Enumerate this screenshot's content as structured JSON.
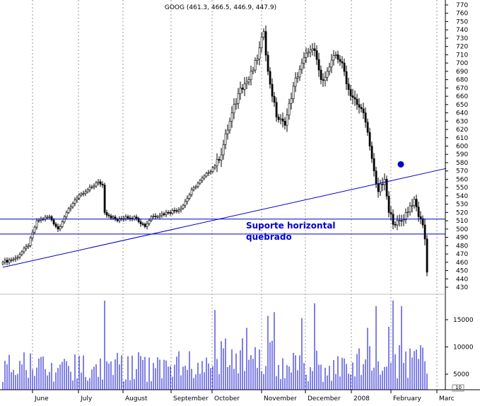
{
  "chart_data": {
    "type": "candlestick",
    "title": "GOOG (461.3, 466.5, 446.9, 447.9)",
    "colors": {
      "price": "#000000",
      "volume": "#0000cc",
      "annotation": "#0000cc",
      "grid": "#999999"
    },
    "price_axis": {
      "ylim": [
        430,
        775
      ],
      "ticks": [
        430,
        440,
        450,
        460,
        470,
        480,
        490,
        500,
        510,
        520,
        530,
        540,
        550,
        560,
        570,
        580,
        590,
        600,
        610,
        620,
        630,
        640,
        650,
        660,
        670,
        680,
        690,
        700,
        710,
        720,
        730,
        740,
        750,
        760,
        770
      ]
    },
    "volume_axis": {
      "ylim": [
        1500,
        19500
      ],
      "ticks": [
        5000,
        10000,
        15000
      ]
    },
    "month_labels": [
      "June",
      "July",
      "August",
      "September",
      "October",
      "November",
      "December",
      "2008",
      "February",
      "Marc"
    ],
    "corner_label": "10",
    "annotations": {
      "horizontal_support_text_line1": "Suporte horizontal",
      "horizontal_support_text_line2": "quebrado",
      "support_levels": [
        512,
        494
      ],
      "trendline_start": {
        "bar": 0,
        "price": 454
      },
      "trendline_end": {
        "bar": 199,
        "price": 573
      },
      "marker_bar": 184,
      "marker_price": 578
    },
    "anchors": [
      {
        "bar": 0,
        "close": 460
      },
      {
        "bar": 6,
        "close": 465
      },
      {
        "bar": 12,
        "close": 480
      },
      {
        "bar": 16,
        "close": 510
      },
      {
        "bar": 22,
        "close": 515
      },
      {
        "bar": 26,
        "close": 500
      },
      {
        "bar": 30,
        "close": 520
      },
      {
        "bar": 34,
        "close": 535
      },
      {
        "bar": 39,
        "close": 545
      },
      {
        "bar": 45,
        "close": 557
      },
      {
        "bar": 47,
        "close": 553
      },
      {
        "bar": 48,
        "close": 520
      },
      {
        "bar": 54,
        "close": 510
      },
      {
        "bar": 58,
        "close": 515
      },
      {
        "bar": 63,
        "close": 513
      },
      {
        "bar": 67,
        "close": 503
      },
      {
        "bar": 70,
        "close": 515
      },
      {
        "bar": 78,
        "close": 520
      },
      {
        "bar": 84,
        "close": 525
      },
      {
        "bar": 90,
        "close": 550
      },
      {
        "bar": 97,
        "close": 568
      },
      {
        "bar": 102,
        "close": 583
      },
      {
        "bar": 107,
        "close": 630
      },
      {
        "bar": 112,
        "close": 670
      },
      {
        "bar": 116,
        "close": 680
      },
      {
        "bar": 120,
        "close": 705
      },
      {
        "bar": 123,
        "close": 738
      },
      {
        "bar": 125,
        "close": 690
      },
      {
        "bar": 129,
        "close": 635
      },
      {
        "bar": 133,
        "close": 625
      },
      {
        "bar": 137,
        "close": 672
      },
      {
        "bar": 141,
        "close": 700
      },
      {
        "bar": 144,
        "close": 713
      },
      {
        "bar": 147,
        "close": 715
      },
      {
        "bar": 150,
        "close": 680
      },
      {
        "bar": 153,
        "close": 690
      },
      {
        "bar": 157,
        "close": 710
      },
      {
        "bar": 160,
        "close": 700
      },
      {
        "bar": 163,
        "close": 668
      },
      {
        "bar": 167,
        "close": 650
      },
      {
        "bar": 170,
        "close": 640
      },
      {
        "bar": 173,
        "close": 600
      },
      {
        "bar": 175,
        "close": 570
      },
      {
        "bar": 177,
        "close": 545
      },
      {
        "bar": 180,
        "close": 560
      },
      {
        "bar": 182,
        "close": 520
      },
      {
        "bar": 185,
        "close": 505
      },
      {
        "bar": 188,
        "close": 510
      },
      {
        "bar": 192,
        "close": 528
      },
      {
        "bar": 194,
        "close": 536
      },
      {
        "bar": 196,
        "close": 515
      },
      {
        "bar": 198,
        "close": 505
      },
      {
        "bar": 199,
        "close": 488
      },
      {
        "bar": 200,
        "close": 448
      }
    ],
    "volume_spikes": [
      {
        "bar": 48,
        "value": 18500
      },
      {
        "bar": 100,
        "value": 16800
      },
      {
        "bar": 115,
        "value": 13500
      },
      {
        "bar": 125,
        "value": 15700
      },
      {
        "bar": 128,
        "value": 16400
      },
      {
        "bar": 141,
        "value": 15300
      },
      {
        "bar": 147,
        "value": 18000
      },
      {
        "bar": 172,
        "value": 13500
      },
      {
        "bar": 176,
        "value": 17500
      },
      {
        "bar": 182,
        "value": 13700
      },
      {
        "bar": 184,
        "value": 18500
      },
      {
        "bar": 188,
        "value": 17500
      }
    ],
    "volume_base": 6500
  }
}
